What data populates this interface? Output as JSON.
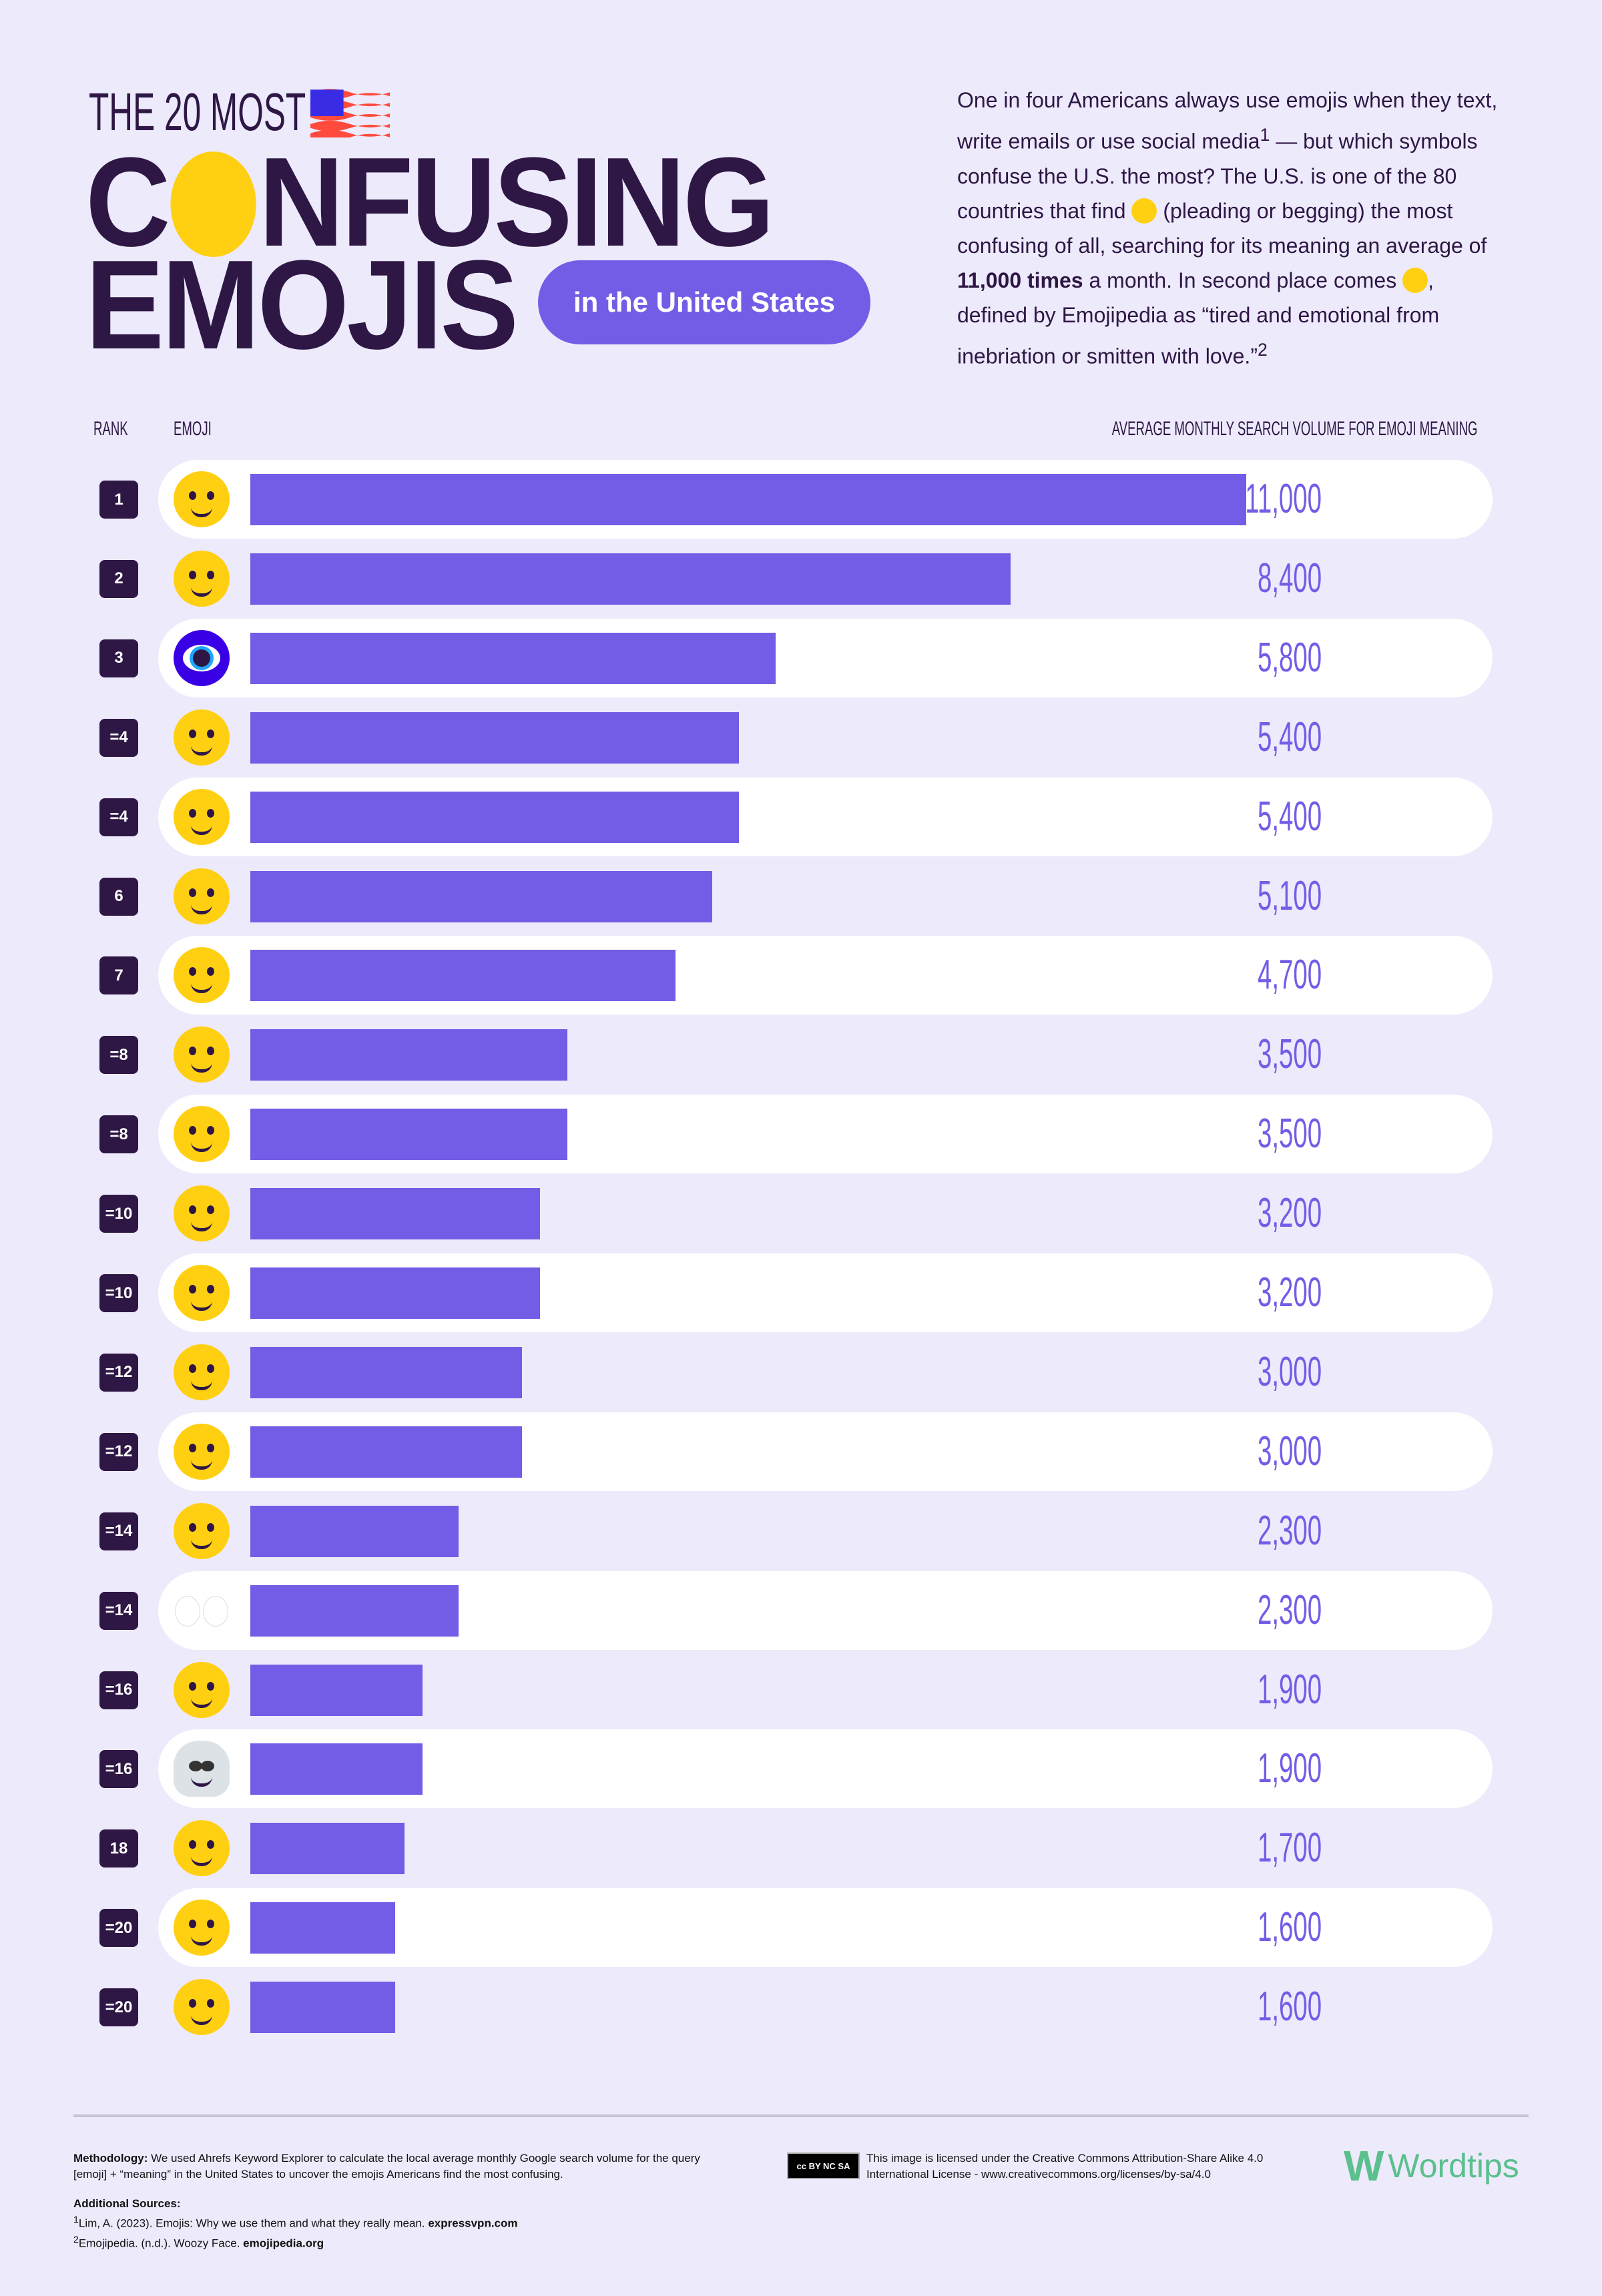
{
  "header": {
    "kicker": "THE 20 MOST",
    "flag_icon": "us-flag-icon",
    "title_c": "C",
    "title_rest": "NFUSING",
    "title_line2": "EMOJIS",
    "title_emoji_icon": "face-with-raised-eyebrow-icon",
    "pill": "in the United States"
  },
  "intro": {
    "p1": "One in four Americans always use emojis when they text, write emails or use social media",
    "sup1": "1",
    "p2": " — but which symbols confuse the U.S. the most? The U.S. is one of the 80 countries that find ",
    "emoji1_icon": "pleading-face-icon",
    "p3": " (pleading or begging) the most confusing of all, searching for its meaning an average of ",
    "bold": "11,000 times",
    "p4": " a month. In second place comes ",
    "emoji2_icon": "woozy-face-icon",
    "p5": ", defined by Emojipedia as “tired and emotional from inebriation or smitten with love.”",
    "sup2": "2"
  },
  "columns": {
    "rank": "RANK",
    "emoji": "EMOJI",
    "volume": "AVERAGE MONTHLY SEARCH VOLUME FOR EMOJI MEANING"
  },
  "colors": {
    "background": "#EDEAFB",
    "bar": "#735DE6",
    "text": "#2E1745",
    "band": "#FFFFFF",
    "emoji_yellow": "#FFD012"
  },
  "chart_data": {
    "type": "bar",
    "orientation": "horizontal",
    "xlim": [
      0,
      11000
    ],
    "grid": false,
    "ylabel": "",
    "xlabel": "AVERAGE MONTHLY SEARCH VOLUME FOR EMOJI MEANING",
    "rows": [
      {
        "rank": "1",
        "emoji": "pleading-face",
        "value": 11000,
        "label": "11,000"
      },
      {
        "rank": "2",
        "emoji": "woozy-face",
        "value": 8400,
        "label": "8,400"
      },
      {
        "rank": "3",
        "emoji": "nazar-amulet",
        "value": 5800,
        "label": "5,800"
      },
      {
        "rank": "=4",
        "emoji": "upside-down-face",
        "value": 5400,
        "label": "5,400"
      },
      {
        "rank": "=4",
        "emoji": "grinning-face-with-sweat",
        "value": 5400,
        "label": "5,400"
      },
      {
        "rank": "6",
        "emoji": "smirking-face",
        "value": 5100,
        "label": "5,100"
      },
      {
        "rank": "7",
        "emoji": "smiling-face-with-hearts",
        "value": 4700,
        "label": "4,700"
      },
      {
        "rank": "=8",
        "emoji": "relieved-face",
        "value": 3500,
        "label": "3,500"
      },
      {
        "rank": "=8",
        "emoji": "weary-face",
        "value": 3500,
        "label": "3,500"
      },
      {
        "rank": "=10",
        "emoji": "loudly-crying-face",
        "value": 3200,
        "label": "3,200"
      },
      {
        "rank": "=10",
        "emoji": "grimacing-face",
        "value": 3200,
        "label": "3,200"
      },
      {
        "rank": "=12",
        "emoji": "face-with-rolling-eyes",
        "value": 3000,
        "label": "3,000"
      },
      {
        "rank": "=12",
        "emoji": "smiling-face-with-smiling-eyes",
        "value": 3000,
        "label": "3,000"
      },
      {
        "rank": "=14",
        "emoji": "unamused-face",
        "value": 2300,
        "label": "2,300"
      },
      {
        "rank": "=14",
        "emoji": "eyes",
        "value": 2300,
        "label": "2,300"
      },
      {
        "rank": "=16",
        "emoji": "neutral-face",
        "value": 1900,
        "label": "1,900"
      },
      {
        "rank": "=16",
        "emoji": "skull",
        "value": 1900,
        "label": "1,900"
      },
      {
        "rank": "18",
        "emoji": "beaming-face-with-smiling-eyes",
        "value": 1700,
        "label": "1,700"
      },
      {
        "rank": "=20",
        "emoji": "nerd-face",
        "value": 1600,
        "label": "1,600"
      },
      {
        "rank": "=20",
        "emoji": "smiling-face-with-heart-eyes",
        "value": 1600,
        "label": "1,600"
      }
    ]
  },
  "footer": {
    "method_label": "Methodology:",
    "method_text": " We used Ahrefs Keyword Explorer to calculate the local average monthly Google search volume for the query [emoji] + “meaning” in the United States to uncover the emojis Americans find the most confusing.",
    "sources_label": "Additional Sources:",
    "source1_sup": "1",
    "source1_text": "Lim, A. (2023). Emojis: Why we use them and what they really mean. ",
    "source1_link": "expressvpn.com",
    "source2_sup": "2",
    "source2_text": "Emojipedia. (n.d.). Woozy Face. ",
    "source2_link": "emojipedia.org",
    "cc_badge": "cc BY NC SA",
    "license": "This image is licensed under the Creative Commons Attribution-Share Alike 4.0 International License - www.creativecommons.org/licenses/by-sa/4.0",
    "logo_mark": "W",
    "logo_text": "Wordtips"
  }
}
